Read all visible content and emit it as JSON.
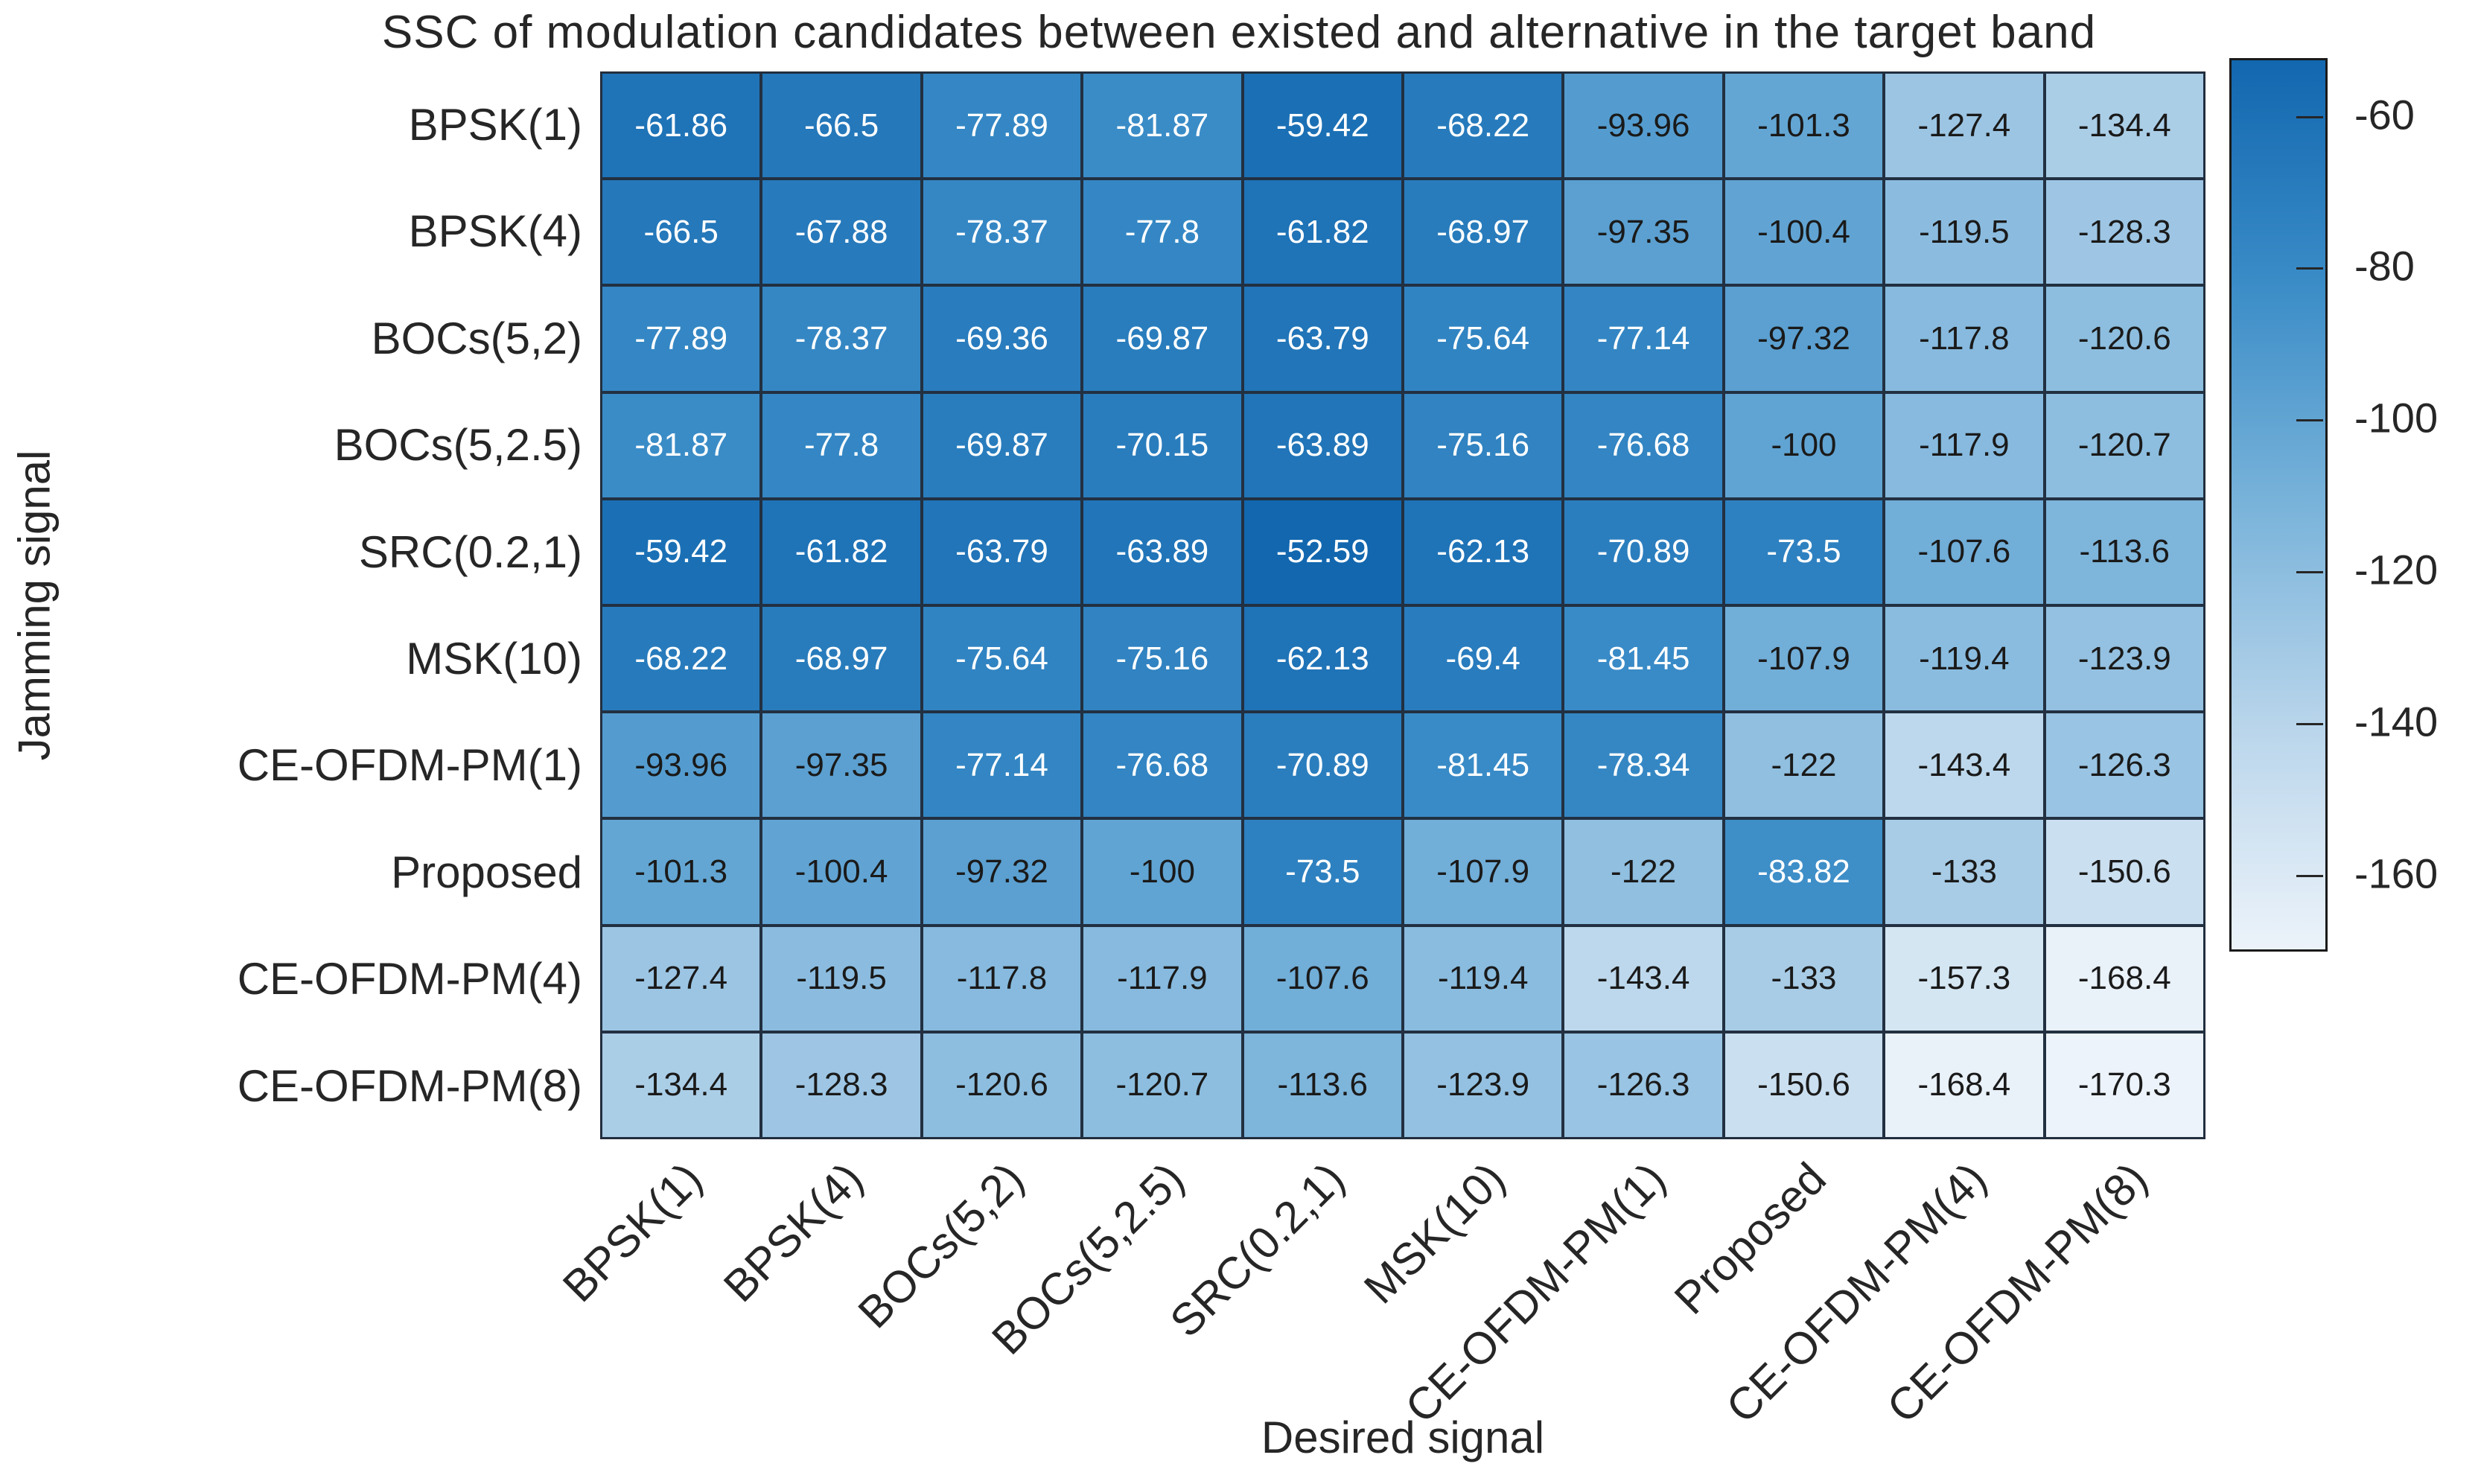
{
  "chart_data": {
    "type": "heatmap",
    "title": "SSC of modulation candidates between existed and alternative in the target band",
    "xlabel": "Desired signal",
    "ylabel": "Jamming signal",
    "x_categories": [
      "BPSK(1)",
      "BPSK(4)",
      "BOCs(5,2)",
      "BOCs(5,2.5)",
      "SRC(0.2,1)",
      "MSK(10)",
      "CE-OFDM-PM(1)",
      "Proposed",
      "CE-OFDM-PM(4)",
      "CE-OFDM-PM(8)"
    ],
    "y_categories": [
      "BPSK(1)",
      "BPSK(4)",
      "BOCs(5,2)",
      "BOCs(5,2.5)",
      "SRC(0.2,1)",
      "MSK(10)",
      "CE-OFDM-PM(1)",
      "Proposed",
      "CE-OFDM-PM(4)",
      "CE-OFDM-PM(8)"
    ],
    "values": [
      [
        -61.86,
        -66.5,
        -77.89,
        -81.87,
        -59.42,
        -68.22,
        -93.96,
        -101.3,
        -127.4,
        -134.4
      ],
      [
        -66.5,
        -67.88,
        -78.37,
        -77.8,
        -61.82,
        -68.97,
        -97.35,
        -100.4,
        -119.5,
        -128.3
      ],
      [
        -77.89,
        -78.37,
        -69.36,
        -69.87,
        -63.79,
        -75.64,
        -77.14,
        -97.32,
        -117.8,
        -120.6
      ],
      [
        -81.87,
        -77.8,
        -69.87,
        -70.15,
        -63.89,
        -75.16,
        -76.68,
        -100,
        -117.9,
        -120.7
      ],
      [
        -59.42,
        -61.82,
        -63.79,
        -63.89,
        -52.59,
        -62.13,
        -70.89,
        -73.5,
        -107.6,
        -113.6
      ],
      [
        -68.22,
        -68.97,
        -75.64,
        -75.16,
        -62.13,
        -69.4,
        -81.45,
        -107.9,
        -119.4,
        -123.9
      ],
      [
        -93.96,
        -97.35,
        -77.14,
        -76.68,
        -70.89,
        -81.45,
        -78.34,
        -122,
        -143.4,
        -126.3
      ],
      [
        -101.3,
        -100.4,
        -97.32,
        -100,
        -73.5,
        -107.9,
        -122,
        -83.82,
        -133,
        -150.6
      ],
      [
        -127.4,
        -119.5,
        -117.8,
        -117.9,
        -107.6,
        -119.4,
        -143.4,
        -133,
        -157.3,
        -168.4
      ],
      [
        -134.4,
        -128.3,
        -120.6,
        -120.7,
        -113.6,
        -123.9,
        -126.3,
        -150.6,
        -168.4,
        -170.3
      ]
    ],
    "colorbar": {
      "ticks": [
        -60,
        -80,
        -100,
        -120,
        -140,
        -160
      ],
      "vmin": -170.3,
      "vmax": -52.59,
      "position": "right"
    },
    "colors": {
      "colormap_stops": [
        "#ecf3fa",
        "#b9d5eb",
        "#79b3da",
        "#3a8cc7",
        "#1267af"
      ],
      "light_text_threshold": 0.7,
      "cell_text_light": "#ffffff",
      "cell_text_dark": "#1a1a1a",
      "grid_line": "#223041",
      "label_color": "#262626"
    },
    "layout": {
      "grid": "on",
      "x_tick_rotation_deg": 45,
      "legend_position": "right-colorbar"
    }
  }
}
